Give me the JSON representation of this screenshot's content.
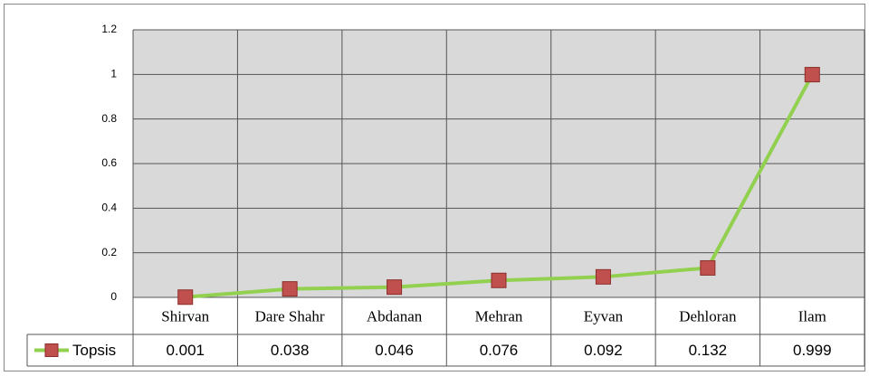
{
  "chart_data": {
    "type": "line",
    "categories": [
      "Shirvan",
      "Dare Shahr",
      "Abdanan",
      "Mehran",
      "Eyvan",
      "Dehloran",
      "Ilam"
    ],
    "series": [
      {
        "name": "Topsis",
        "color": "#92d050",
        "marker_color": "#c0504d",
        "values": [
          0.001,
          0.038,
          0.046,
          0.076,
          0.092,
          0.132,
          0.999
        ]
      }
    ],
    "ylim": [
      0,
      1.2
    ],
    "yticks": [
      0,
      0.2,
      0.4,
      0.6,
      0.8,
      1,
      1.2
    ],
    "grid": true
  }
}
